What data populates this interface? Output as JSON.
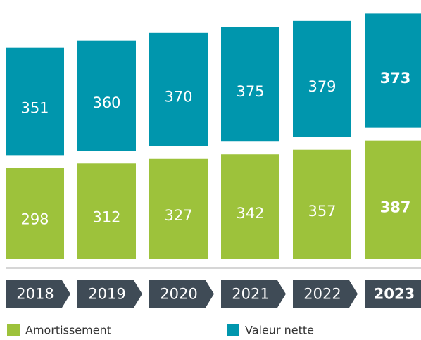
{
  "chart_data": {
    "type": "stacked_bar",
    "categories": [
      "2018",
      "2019",
      "2020",
      "2021",
      "2022",
      "2023"
    ],
    "series": [
      {
        "name": "Amortissement",
        "color": "#9dc23b",
        "values": [
          298,
          312,
          327,
          342,
          357,
          387
        ]
      },
      {
        "name": "Valeur nette",
        "color": "#0096ad",
        "values": [
          351,
          360,
          370,
          375,
          379,
          373
        ]
      }
    ]
  }
}
